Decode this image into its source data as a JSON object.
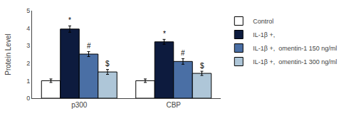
{
  "chart_data": {
    "type": "bar",
    "categories": [
      "p300",
      "CBP"
    ],
    "series": [
      {
        "name": "Control",
        "color": "white",
        "values": [
          1.0,
          1.0
        ],
        "errors": [
          0.1,
          0.1
        ]
      },
      {
        "name": "IL-1β +,",
        "color": "#0d1b3e",
        "values": [
          3.95,
          3.22
        ],
        "errors": [
          0.18,
          0.14
        ]
      },
      {
        "name": "IL-1β +,  omentin-1 150 ng/ml",
        "color": "#4a6fa5",
        "values": [
          2.52,
          2.1
        ],
        "errors": [
          0.14,
          0.16
        ]
      },
      {
        "name": "IL-1β +,  omentin-1 300 ng/ml",
        "color": "#aec6d8",
        "values": [
          1.5,
          1.42
        ],
        "errors": [
          0.14,
          0.12
        ]
      }
    ],
    "ylabel": "Protein Level",
    "ylim": [
      0,
      5
    ],
    "yticks": [
      0,
      1,
      2,
      3,
      4,
      5
    ],
    "annotations": [
      {
        "text": "*",
        "category": "p300",
        "series": 1,
        "y": 4.15
      },
      {
        "text": "#",
        "category": "p300",
        "series": 2,
        "y": 2.68
      },
      {
        "text": "$",
        "category": "p300",
        "series": 3,
        "y": 1.66
      },
      {
        "text": "*",
        "category": "CBP",
        "series": 1,
        "y": 3.38
      },
      {
        "text": "#",
        "category": "CBP",
        "series": 2,
        "y": 2.28
      },
      {
        "text": "$",
        "category": "CBP",
        "series": 3,
        "y": 1.56
      }
    ],
    "grid": false,
    "legend": "upper right"
  }
}
